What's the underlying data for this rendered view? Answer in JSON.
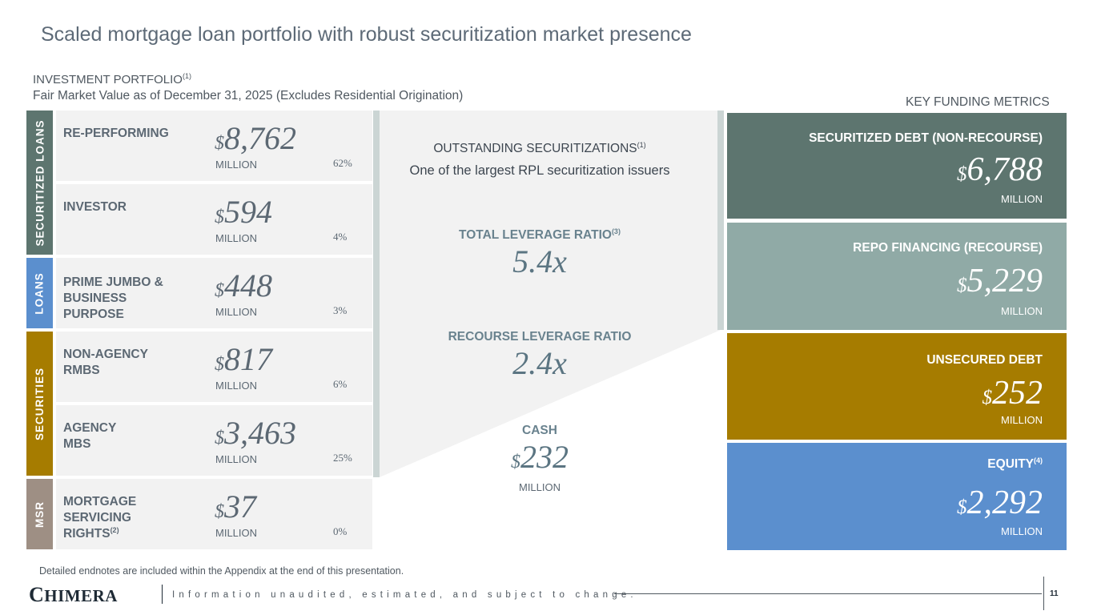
{
  "title": "Scaled mortgage loan portfolio with robust securitization market presence",
  "portfolio": {
    "heading": "INVESTMENT PORTFOLIO",
    "heading_note": "(1)",
    "subheading": "Fair Market Value as of December 31, 2025 (Excludes Residential Origination)",
    "categories": {
      "securitized_loans": "SECURITIZED LOANS",
      "loans": "LOANS",
      "securities": "SECURITIES",
      "msr": "MSR"
    },
    "category_colors": {
      "securitized_loans": "#5d756f",
      "loans": "#5b8fce",
      "securities": "#a67c00",
      "msr": "#9e8f84"
    },
    "currency_symbol": "$",
    "rows": [
      {
        "label": "RE-PERFORMING",
        "label_note": "",
        "amount": "8,762",
        "unit": "MILLION",
        "pct": "62%"
      },
      {
        "label": "INVESTOR",
        "label_note": "",
        "amount": "594",
        "unit": "MILLION",
        "pct": "4%"
      },
      {
        "label": "PRIME JUMBO & BUSINESS PURPOSE",
        "label_note": "",
        "amount": "448",
        "unit": "MILLION",
        "pct": "3%"
      },
      {
        "label": "NON-AGENCY RMBS",
        "label_note": "",
        "amount": "817",
        "unit": "MILLION",
        "pct": "6%"
      },
      {
        "label": "AGENCY MBS",
        "label_note": "",
        "amount": "3,463",
        "unit": "MILLION",
        "pct": "25%"
      },
      {
        "label": "MORTGAGE SERVICING RIGHTS",
        "label_note": "(2)",
        "amount": "37",
        "unit": "MILLION",
        "pct": "0%"
      }
    ]
  },
  "middle": {
    "securitizations_title": "OUTSTANDING SECURITIZATIONS",
    "securitizations_note": "(1)",
    "securitizations_sub": "One of the largest RPL securitization issuers",
    "total_leverage_title": "TOTAL LEVERAGE RATIO",
    "total_leverage_note": "(3)",
    "total_leverage_value": "5.4x",
    "recourse_leverage_title": "RECOURSE LEVERAGE RATIO",
    "recourse_leverage_value": "2.4x",
    "cash_title": "CASH",
    "cash_currency": "$",
    "cash_value": "232",
    "cash_unit": "MILLION"
  },
  "funding": {
    "heading": "KEY FUNDING METRICS",
    "metrics": [
      {
        "title": "SECURITIZED DEBT (NON-RECOURSE)",
        "note": "",
        "currency": "$",
        "amount": "6,788",
        "unit": "MILLION",
        "color": "#5d756f"
      },
      {
        "title": "REPO FINANCING (RECOURSE)",
        "note": "",
        "currency": "$",
        "amount": "5,229",
        "unit": "MILLION",
        "color": "#90aaa6"
      },
      {
        "title": "UNSECURED DEBT",
        "note": "",
        "currency": "$",
        "amount": "252",
        "unit": "MILLION",
        "color": "#a67c00"
      },
      {
        "title": "EQUITY",
        "note": "(4)",
        "currency": "$",
        "amount": "2,292",
        "unit": "MILLION",
        "color": "#5b8fce"
      }
    ]
  },
  "footer": {
    "endnote": "Detailed endnotes are included within the Appendix at the end of this presentation.",
    "logo_first": "C",
    "logo_rest": "HIMERA",
    "tagline": "Information unaudited, estimated, and subject to change.",
    "page_number": "11"
  }
}
